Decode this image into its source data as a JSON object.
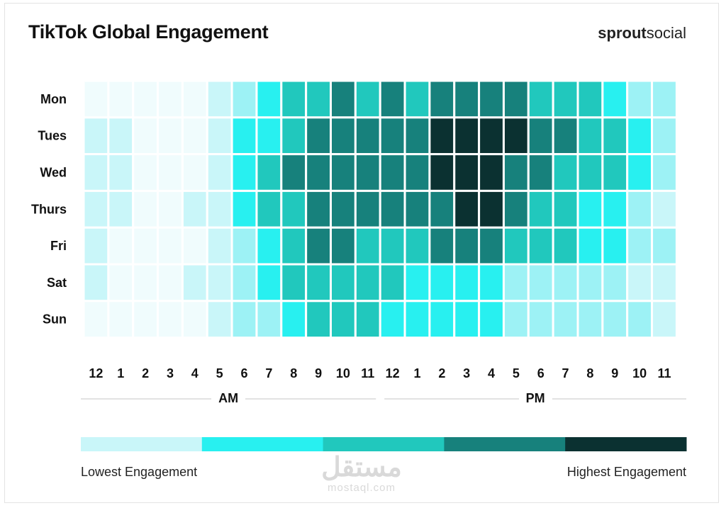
{
  "header": {
    "title": "TikTok Global Engagement",
    "brand_bold": "sprout",
    "brand_light": "social"
  },
  "colors": {
    "levels": [
      "#f0fcfd",
      "#c9f6f9",
      "#9df2f5",
      "#28f0f0",
      "#21c8bd",
      "#17817c",
      "#0b3131"
    ],
    "legend": [
      "#c9f6f9",
      "#28f0f0",
      "#21c8bd",
      "#17817c",
      "#0b3131"
    ]
  },
  "chart_data": {
    "type": "heatmap",
    "title": "TikTok Global Engagement",
    "rows": [
      "Mon",
      "Tues",
      "Wed",
      "Thurs",
      "Fri",
      "Sat",
      "Sun"
    ],
    "columns": [
      "12",
      "1",
      "2",
      "3",
      "4",
      "5",
      "6",
      "7",
      "8",
      "9",
      "10",
      "11",
      "12",
      "1",
      "2",
      "3",
      "4",
      "5",
      "6",
      "7",
      "8",
      "9",
      "10",
      "11"
    ],
    "period_labels": [
      "AM",
      "PM"
    ],
    "scale_min_label": "Lowest Engagement",
    "scale_max_label": "Highest Engagement",
    "values": [
      [
        0,
        0,
        0,
        0,
        0,
        1,
        2,
        3,
        4,
        4,
        5,
        4,
        5,
        4,
        5,
        5,
        5,
        5,
        4,
        4,
        4,
        3,
        2,
        2
      ],
      [
        1,
        1,
        0,
        0,
        0,
        1,
        3,
        3,
        4,
        5,
        5,
        5,
        5,
        5,
        6,
        6,
        6,
        6,
        5,
        5,
        4,
        4,
        3,
        2
      ],
      [
        1,
        1,
        0,
        0,
        0,
        1,
        3,
        4,
        5,
        5,
        5,
        5,
        5,
        5,
        6,
        6,
        6,
        5,
        5,
        4,
        4,
        4,
        3,
        2
      ],
      [
        1,
        1,
        0,
        0,
        1,
        1,
        3,
        4,
        4,
        5,
        5,
        5,
        5,
        5,
        5,
        6,
        6,
        5,
        4,
        4,
        3,
        3,
        2,
        1
      ],
      [
        1,
        0,
        0,
        0,
        0,
        1,
        2,
        3,
        4,
        5,
        5,
        4,
        4,
        4,
        5,
        5,
        5,
        4,
        4,
        4,
        3,
        3,
        2,
        2
      ],
      [
        1,
        0,
        0,
        0,
        1,
        1,
        2,
        3,
        4,
        4,
        4,
        4,
        4,
        3,
        3,
        3,
        3,
        2,
        2,
        2,
        2,
        2,
        1,
        1
      ],
      [
        0,
        0,
        0,
        0,
        0,
        1,
        2,
        2,
        3,
        4,
        4,
        4,
        3,
        3,
        3,
        3,
        3,
        2,
        2,
        2,
        2,
        2,
        2,
        1
      ]
    ]
  }
}
